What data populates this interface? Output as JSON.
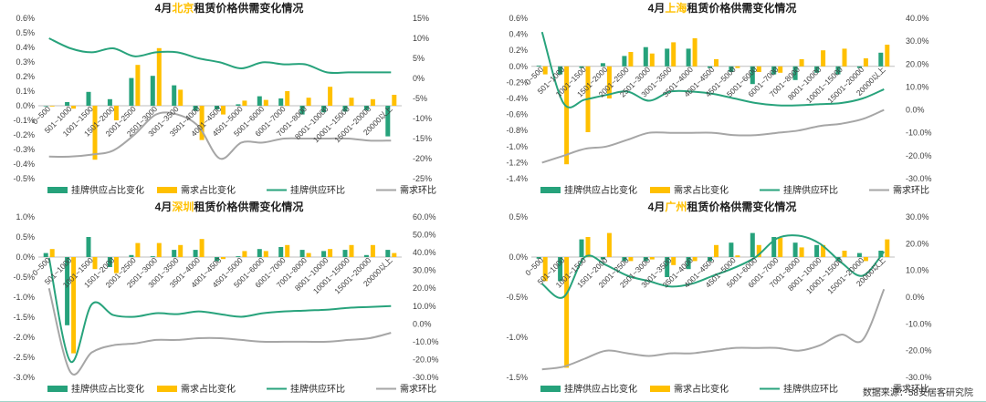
{
  "colors": {
    "supply_bar": "#26a27b",
    "demand_bar": "#ffc000",
    "supply_line": "#28a37c",
    "demand_line": "#a6a6a6",
    "city": "#ffc000",
    "title": "#1f1f1f"
  },
  "legend": {
    "supply_share": "挂牌供应占比变化",
    "demand_share": "需求占比变化",
    "supply_mom": "挂牌供应环比",
    "demand_mom": "需求环比"
  },
  "source": "数据来源：58安居客研究院",
  "chart_data": [
    {
      "type": "bar",
      "title_prefix": "4月",
      "city": "北京",
      "title_suffix": "租赁价格供需变化情况",
      "categories": [
        "0~500",
        "501~1000",
        "1001~1500",
        "1501~2000",
        "2001~2500",
        "2501~3000",
        "3001~3500",
        "3501~4000",
        "4001~4500",
        "4501~5000",
        "5001~6000",
        "6001~7000",
        "7001~8000",
        "8001~10000",
        "10001~15000",
        "15001~20000",
        "20000以上"
      ],
      "left_axis": {
        "min": -0.5,
        "max": 0.6,
        "step": 0.1,
        "ticks": [
          "-0.5%",
          "-0.4%",
          "-0.3%",
          "-0.2%",
          "-0.1%",
          "0.0%",
          "0.1%",
          "0.2%",
          "0.3%",
          "0.4%",
          "0.5%",
          "0.6%"
        ]
      },
      "right_axis": {
        "min": -25,
        "max": 15,
        "step": 5,
        "ticks": [
          "-25%",
          "-20%",
          "-15%",
          "-10%",
          "-5%",
          "0%",
          "5%",
          "10%",
          "15%"
        ]
      },
      "series": [
        {
          "name": "挂牌供应占比变化",
          "kind": "bar",
          "axis": "left",
          "values": [
            0,
            0.025,
            0.095,
            0.045,
            0.19,
            0.205,
            0.14,
            -0.035,
            -0.025,
            0.01,
            0.065,
            0.05,
            -0.06,
            -0.045,
            -0.04,
            -0.03,
            -0.21
          ]
        },
        {
          "name": "需求占比变化",
          "kind": "bar",
          "axis": "left",
          "values": [
            -0.005,
            -0.02,
            -0.37,
            -0.1,
            0.28,
            0.395,
            0.11,
            -0.235,
            -0.06,
            0.035,
            0.04,
            0.1,
            0.055,
            0.13,
            0.055,
            0.045,
            0.075
          ]
        },
        {
          "name": "挂牌供应环比",
          "kind": "line",
          "axis": "right",
          "values": [
            10,
            7.5,
            6.5,
            7.5,
            5.5,
            6.5,
            6.5,
            5,
            4,
            2.5,
            4,
            3.5,
            3.5,
            1.5,
            1.5,
            1.5,
            1.5
          ]
        },
        {
          "name": "需求环比",
          "kind": "line",
          "axis": "right",
          "values": [
            -19.5,
            -19.5,
            -19,
            -18,
            -14,
            -9,
            -9,
            -12,
            -20,
            -16,
            -16,
            -15,
            -15,
            -15,
            -15,
            -15.5,
            -15.5
          ]
        }
      ],
      "cat_label_row": "top"
    },
    {
      "type": "bar",
      "title_prefix": "4月",
      "city": "上海",
      "title_suffix": "租赁价格供需变化情况",
      "categories": [
        "0~500",
        "501~1000",
        "1001~1500",
        "1501~2000",
        "2001~2500",
        "2501~3000",
        "3001~3500",
        "3501~4000",
        "4001~4500",
        "4501~5000",
        "5001~6000",
        "6001~7000",
        "7001~8000",
        "8001~10000",
        "10001~15000",
        "15001~20000",
        "20000以上"
      ],
      "left_axis": {
        "min": -1.4,
        "max": 0.6,
        "step": 0.2,
        "ticks": [
          "-1.4%",
          "-1.2%",
          "-1.0%",
          "-0.8%",
          "-0.6%",
          "-0.4%",
          "-0.2%",
          "0.0%",
          "0.2%",
          "0.4%",
          "0.6%"
        ]
      },
      "right_axis": {
        "min": -30,
        "max": 40,
        "step": 10,
        "ticks": [
          "-30.0%",
          "-20.0%",
          "-10.0%",
          "0.0%",
          "10.0%",
          "20.0%",
          "30.0%",
          "40.0%"
        ]
      },
      "series": [
        {
          "name": "挂牌供应占比变化",
          "kind": "bar",
          "axis": "left",
          "values": [
            0.01,
            -0.1,
            -0.02,
            0.04,
            0.13,
            0.24,
            0.22,
            0.22,
            -0.02,
            -0.07,
            -0.22,
            -0.1,
            -0.17,
            -0.08,
            -0.1,
            -0.02,
            0.17
          ]
        },
        {
          "name": "需求占比变化",
          "kind": "bar",
          "axis": "left",
          "values": [
            -0.1,
            -1.22,
            -0.82,
            -0.4,
            0.18,
            0.16,
            0.3,
            0.35,
            0.09,
            -0.02,
            -0.07,
            -0.08,
            0.09,
            0.2,
            0.22,
            0.1,
            0.27
          ]
        },
        {
          "name": "挂牌供应环比",
          "kind": "line",
          "axis": "right",
          "values": [
            34,
            3,
            4.5,
            6.5,
            8,
            4,
            8,
            8,
            7,
            5,
            3,
            2,
            2,
            2.5,
            3,
            5,
            9
          ]
        },
        {
          "name": "需求环比",
          "kind": "line",
          "axis": "right",
          "values": [
            -23,
            -20,
            -17,
            -16,
            -13,
            -10,
            -10,
            -10,
            -10,
            -11,
            -11,
            -10,
            -9,
            -7,
            -6,
            -4,
            0
          ]
        }
      ],
      "cat_label_row": "top"
    },
    {
      "type": "bar",
      "title_prefix": "4月",
      "city": "深圳",
      "title_suffix": "租赁价格供需变化情况",
      "categories": [
        "0~500",
        "501~1000",
        "1001~1500",
        "1501~2000",
        "2001~2500",
        "2501~3000",
        "3001~3500",
        "3501~4000",
        "4001~4500",
        "4501~5000",
        "5001~6000",
        "6001~7000",
        "7001~8000",
        "8001~10000",
        "10001~15000",
        "15001~20000",
        "20000以上"
      ],
      "left_axis": {
        "min": -3.0,
        "max": 1.0,
        "step": 0.5,
        "ticks": [
          "-3.0%",
          "-2.5%",
          "-2.0%",
          "-1.5%",
          "-1.0%",
          "-0.5%",
          "0.0%",
          "0.5%",
          "1.0%"
        ]
      },
      "right_axis": {
        "min": -30,
        "max": 60,
        "step": 10,
        "ticks": [
          "-30.0%",
          "-20.0%",
          "-10.0%",
          "0.0%",
          "10.0%",
          "20.0%",
          "30.0%",
          "40.0%",
          "50.0%",
          "60.0%"
        ]
      },
      "series": [
        {
          "name": "挂牌供应占比变化",
          "kind": "bar",
          "axis": "left",
          "values": [
            0.1,
            -1.7,
            0.5,
            -0.25,
            0.05,
            0.02,
            0.18,
            0.18,
            -0.1,
            0.02,
            0.2,
            0.25,
            0.18,
            0.15,
            0.18,
            0.05,
            0.18
          ]
        },
        {
          "name": "需求占比变化",
          "kind": "bar",
          "axis": "left",
          "values": [
            0.2,
            -2.4,
            -0.3,
            -0.4,
            0.35,
            0.35,
            0.3,
            0.45,
            -0.05,
            0.15,
            0.15,
            0.3,
            0.1,
            0.2,
            0.3,
            0.3,
            0.1
          ]
        },
        {
          "name": "挂牌供应环比",
          "kind": "line",
          "axis": "right",
          "values": [
            37,
            -21,
            11,
            5,
            4,
            6,
            5.5,
            7,
            5.5,
            4,
            6,
            7,
            7.5,
            8,
            9,
            9.5,
            10
          ]
        },
        {
          "name": "需求环比",
          "kind": "line",
          "axis": "right",
          "values": [
            20,
            -27,
            -16,
            -12,
            -11,
            -9,
            -9,
            -8,
            -8,
            -9,
            -10,
            -10,
            -10,
            -10,
            -9,
            -8,
            -5
          ]
        }
      ],
      "cat_label_row": "upper"
    },
    {
      "type": "bar",
      "title_prefix": "4月",
      "city": "广州",
      "title_suffix": "租赁价格供需变化情况",
      "categories": [
        "0~500",
        "501~1000",
        "1001~1500",
        "1501~2000",
        "2001~2500",
        "2501~3000",
        "3001~3500",
        "3501~4000",
        "4001~4500",
        "4501~5000",
        "5001~6000",
        "6001~7000",
        "7001~8000",
        "8001~10000",
        "10001~15000",
        "15001~20000",
        "20000以上"
      ],
      "left_axis": {
        "min": -1.5,
        "max": 0.5,
        "step": 0.5,
        "ticks": [
          "-1.5%",
          "-1.0%",
          "-0.5%",
          "0.0%",
          "0.5%"
        ]
      },
      "right_axis": {
        "min": -30,
        "max": 30,
        "step": 10,
        "ticks": [
          "-30.0%",
          "-20.0%",
          "-10.0%",
          "0.0%",
          "10.0%",
          "20.0%",
          "30.0%"
        ]
      },
      "series": [
        {
          "name": "挂牌供应占比变化",
          "kind": "bar",
          "axis": "left",
          "values": [
            -0.02,
            -0.3,
            0.22,
            -0.03,
            -0.05,
            -0.05,
            -0.25,
            -0.15,
            -0.05,
            0.18,
            0.3,
            0.25,
            0.18,
            0.15,
            -0.05,
            0.05,
            0.08
          ]
        },
        {
          "name": "需求占比变化",
          "kind": "bar",
          "axis": "left",
          "values": [
            -0.3,
            -1.38,
            0.25,
            0.3,
            -0.05,
            -0.03,
            -0.1,
            -0.05,
            0.15,
            0.02,
            0.15,
            0.24,
            0.12,
            0.15,
            0.08,
            -0.05,
            0.22
          ]
        },
        {
          "name": "挂牌供应环比",
          "kind": "line",
          "axis": "right",
          "values": [
            5,
            0,
            15,
            12,
            8,
            6,
            4,
            5,
            8,
            11,
            15,
            22,
            23,
            20,
            13,
            8,
            17
          ]
        },
        {
          "name": "需求环比",
          "kind": "line",
          "axis": "right",
          "values": [
            -27,
            -26,
            -23,
            -20,
            -21,
            -22,
            -21,
            -21,
            -20,
            -19,
            -19,
            -19,
            -20,
            -18,
            -14,
            -16,
            3
          ]
        }
      ],
      "cat_label_row": "upper"
    }
  ]
}
